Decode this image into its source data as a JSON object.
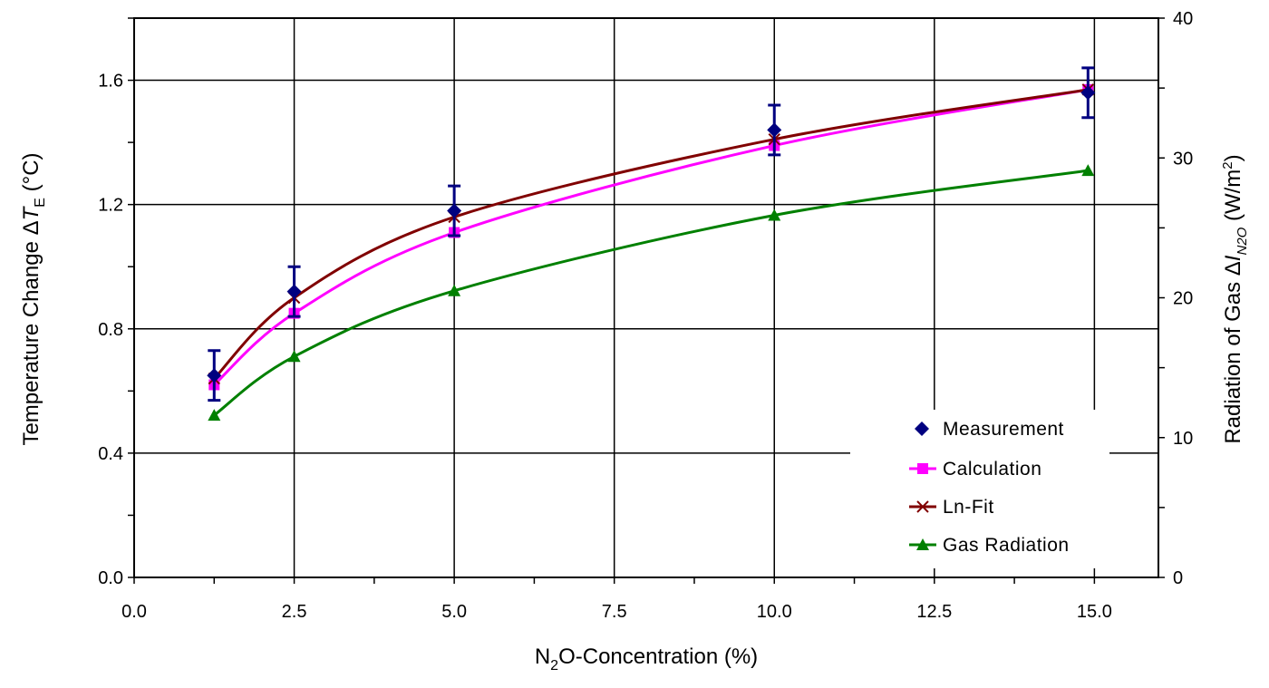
{
  "chart_data": {
    "type": "line",
    "x_axis": {
      "label_pre": "N",
      "label_sub": "2",
      "label_post": "O-Concentration (%)",
      "range": [
        0,
        16
      ],
      "ticks": [
        0,
        2.5,
        5,
        7.5,
        10,
        12.5,
        15
      ],
      "tick_labels": [
        "0.0",
        "2.5",
        "5.0",
        "7.5",
        "10.0",
        "12.5",
        "15.0"
      ]
    },
    "y_axis_left": {
      "label_pre": "Temperature Change  Δ",
      "label_italic": "T",
      "label_sub": "E",
      "label_post": " (°C)",
      "range": [
        0,
        1.8
      ],
      "ticks": [
        0,
        0.4,
        0.8,
        1.2,
        1.6
      ],
      "tick_labels": [
        "0.0",
        "0.4",
        "0.8",
        "1.2",
        "1.6"
      ]
    },
    "y_axis_right": {
      "label_pre": "Radiation of Gas Δ",
      "label_italic": "I",
      "label_sub": "N2O",
      "label_mid": " (W/m",
      "label_sup": "2",
      "label_post": ")",
      "range": [
        0,
        40
      ],
      "ticks": [
        0,
        10,
        20,
        30,
        40
      ],
      "tick_labels": [
        "0",
        "10",
        "20",
        "30",
        "40"
      ]
    },
    "grid": true,
    "legend_position": "bottom-right",
    "series": [
      {
        "name": "Measurement",
        "axis": "left",
        "marker": "diamond",
        "color": "#000080",
        "line": false,
        "x": [
          1.25,
          2.5,
          5.0,
          10.0,
          14.9
        ],
        "y": [
          0.65,
          0.92,
          1.18,
          1.44,
          1.56
        ],
        "error": [
          0.08,
          0.08,
          0.08,
          0.08,
          0.08
        ]
      },
      {
        "name": "Calculation",
        "axis": "left",
        "marker": "square",
        "color": "#ff00ff",
        "line": true,
        "x": [
          1.25,
          2.5,
          5.0,
          10.0,
          14.9
        ],
        "y": [
          0.62,
          0.85,
          1.11,
          1.39,
          1.57
        ]
      },
      {
        "name": "Ln-Fit",
        "axis": "left",
        "marker": "x",
        "color": "#800000",
        "line": true,
        "x": [
          1.25,
          2.5,
          5.0,
          10.0,
          14.9
        ],
        "y": [
          0.64,
          0.9,
          1.16,
          1.41,
          1.57
        ]
      },
      {
        "name": "Gas Radiation",
        "axis": "right",
        "marker": "triangle",
        "color": "#008000",
        "line": true,
        "x": [
          1.25,
          2.5,
          5.0,
          10.0,
          14.9
        ],
        "y": [
          11.6,
          15.8,
          20.5,
          25.9,
          29.1
        ]
      }
    ]
  }
}
